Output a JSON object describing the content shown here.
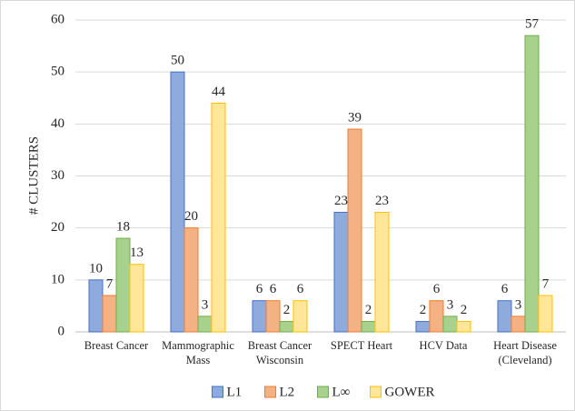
{
  "chart_data": {
    "type": "bar",
    "y_label": "# CLUSTERS",
    "categories": [
      "Breast Cancer",
      "Mammographic\nMass",
      "Breast Cancer\nWisconsin",
      "SPECT Heart",
      "HCV Data",
      "Heart Disease\n(Cleveland)"
    ],
    "series": [
      {
        "name": "L1",
        "color": "#8faadc",
        "values": [
          10,
          50,
          6,
          23,
          2,
          6
        ]
      },
      {
        "name": "L2",
        "color": "#f4b183",
        "values": [
          7,
          20,
          6,
          39,
          6,
          3
        ]
      },
      {
        "name": "L∞",
        "color": "#a9d18e",
        "values": [
          18,
          3,
          2,
          2,
          3,
          57
        ]
      },
      {
        "name": "GOWER",
        "color": "#ffe699",
        "values": [
          13,
          44,
          6,
          23,
          2,
          7
        ]
      }
    ],
    "ylim": [
      0,
      60
    ],
    "yticks": [
      0,
      10,
      20,
      30,
      40,
      50,
      60
    ],
    "grid": true,
    "legend": "bottom"
  }
}
